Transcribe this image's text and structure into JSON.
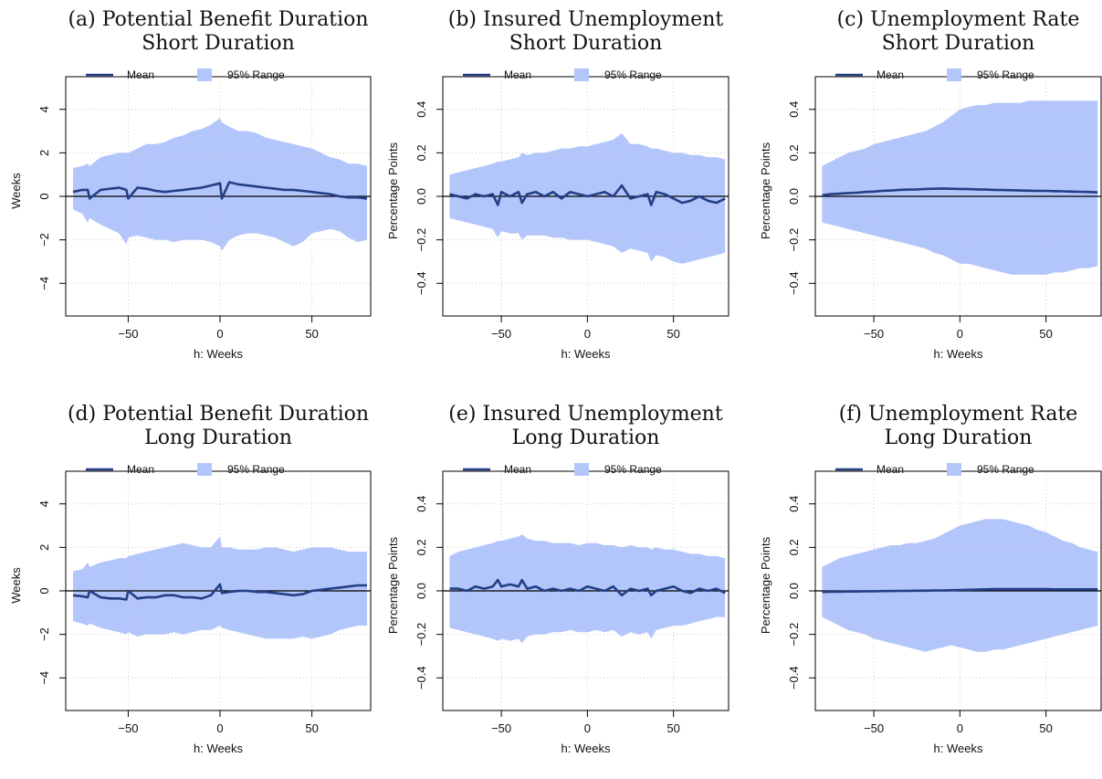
{
  "colors": {
    "band": "#b3c6fb",
    "mean": "#243f86",
    "zero_line": "#000000",
    "grid": "#cccccc"
  },
  "legend": {
    "mean_label": "Mean",
    "range_label": "95% Range"
  },
  "chart_data": [
    {
      "type": "line",
      "title": "(a) Potential Benefit Duration",
      "subtitle": "Short Duration",
      "xlabel": "h: Weeks",
      "ylabel": "Weeks",
      "xlim": [
        -84,
        82
      ],
      "ylim": [
        -5.5,
        5.5
      ],
      "xticks": [
        -50,
        0,
        50
      ],
      "yticks": [
        -4,
        -2,
        0,
        2,
        4
      ],
      "grid": true,
      "legend_position": "top",
      "x": [
        -80,
        -75,
        -72,
        -71,
        -65,
        -60,
        -55,
        -51,
        -50,
        -45,
        -40,
        -35,
        -30,
        -25,
        -20,
        -15,
        -10,
        -5,
        0,
        1,
        5,
        10,
        15,
        20,
        25,
        30,
        35,
        40,
        45,
        50,
        55,
        60,
        65,
        70,
        75,
        80
      ],
      "series": [
        {
          "name": "Mean",
          "values": [
            0.2,
            0.3,
            0.3,
            -0.1,
            0.3,
            0.35,
            0.4,
            0.3,
            -0.1,
            0.4,
            0.35,
            0.25,
            0.2,
            0.25,
            0.3,
            0.35,
            0.4,
            0.5,
            0.6,
            -0.1,
            0.65,
            0.55,
            0.5,
            0.45,
            0.4,
            0.35,
            0.3,
            0.3,
            0.25,
            0.2,
            0.15,
            0.1,
            0.0,
            -0.05,
            -0.05,
            -0.1
          ]
        },
        {
          "name": "95% Range",
          "lower": [
            -0.6,
            -0.8,
            -1.2,
            -1.0,
            -1.3,
            -1.5,
            -1.7,
            -2.2,
            -1.9,
            -1.8,
            -1.9,
            -2.0,
            -2.0,
            -2.1,
            -2.0,
            -2.0,
            -2.0,
            -2.1,
            -2.3,
            -2.5,
            -2.0,
            -1.8,
            -1.7,
            -1.7,
            -1.8,
            -1.9,
            -2.1,
            -2.3,
            -2.1,
            -1.7,
            -1.6,
            -1.5,
            -1.6,
            -1.9,
            -2.1,
            -2.0
          ],
          "upper": [
            1.3,
            1.4,
            1.5,
            1.4,
            1.8,
            1.9,
            2.0,
            2.0,
            2.0,
            2.2,
            2.4,
            2.4,
            2.5,
            2.7,
            2.8,
            3.0,
            3.1,
            3.3,
            3.6,
            3.4,
            3.2,
            3.0,
            3.0,
            2.9,
            2.7,
            2.6,
            2.5,
            2.4,
            2.3,
            2.2,
            2.0,
            1.8,
            1.7,
            1.5,
            1.5,
            1.4
          ]
        }
      ]
    },
    {
      "type": "line",
      "title": "(b) Insured Unemployment",
      "subtitle": "Short Duration",
      "xlabel": "h: Weeks",
      "ylabel": "Percentage Points",
      "xlim": [
        -84,
        82
      ],
      "ylim": [
        -0.55,
        0.55
      ],
      "xticks": [
        -50,
        0,
        50
      ],
      "yticks": [
        -0.4,
        -0.2,
        0.0,
        0.2,
        0.4
      ],
      "grid": true,
      "legend_position": "top",
      "x": [
        -80,
        -75,
        -70,
        -65,
        -60,
        -55,
        -52,
        -50,
        -45,
        -40,
        -38,
        -35,
        -30,
        -25,
        -20,
        -15,
        -10,
        -5,
        0,
        5,
        10,
        15,
        20,
        25,
        30,
        35,
        37,
        40,
        45,
        50,
        55,
        60,
        65,
        70,
        75,
        80
      ],
      "series": [
        {
          "name": "Mean",
          "values": [
            0.01,
            0.0,
            -0.01,
            0.01,
            0.0,
            0.01,
            -0.04,
            0.02,
            0.0,
            0.02,
            -0.03,
            0.01,
            0.02,
            0.0,
            0.02,
            -0.01,
            0.02,
            0.01,
            0.0,
            0.01,
            0.02,
            0.0,
            0.05,
            -0.01,
            0.0,
            0.01,
            -0.04,
            0.02,
            0.01,
            -0.01,
            -0.03,
            -0.02,
            0.0,
            -0.02,
            -0.03,
            -0.01
          ]
        },
        {
          "name": "95% Range",
          "lower": [
            -0.1,
            -0.11,
            -0.12,
            -0.13,
            -0.14,
            -0.15,
            -0.19,
            -0.16,
            -0.17,
            -0.17,
            -0.2,
            -0.18,
            -0.18,
            -0.18,
            -0.19,
            -0.19,
            -0.2,
            -0.2,
            -0.2,
            -0.21,
            -0.22,
            -0.23,
            -0.26,
            -0.24,
            -0.25,
            -0.26,
            -0.3,
            -0.27,
            -0.28,
            -0.3,
            -0.31,
            -0.3,
            -0.29,
            -0.28,
            -0.27,
            -0.26
          ],
          "upper": [
            0.1,
            0.11,
            0.12,
            0.13,
            0.14,
            0.15,
            0.16,
            0.16,
            0.17,
            0.18,
            0.2,
            0.19,
            0.2,
            0.2,
            0.21,
            0.22,
            0.22,
            0.23,
            0.23,
            0.24,
            0.25,
            0.26,
            0.29,
            0.24,
            0.24,
            0.23,
            0.22,
            0.22,
            0.21,
            0.2,
            0.2,
            0.19,
            0.19,
            0.18,
            0.18,
            0.17
          ]
        }
      ]
    },
    {
      "type": "line",
      "title": "(c) Unemployment Rate",
      "subtitle": "Short Duration",
      "xlabel": "h: Weeks",
      "ylabel": "Percentage Points",
      "xlim": [
        -84,
        82
      ],
      "ylim": [
        -0.55,
        0.55
      ],
      "xticks": [
        -50,
        0,
        50
      ],
      "yticks": [
        -0.4,
        -0.2,
        0.0,
        0.2,
        0.4
      ],
      "grid": true,
      "legend_position": "top",
      "x": [
        -80,
        -75,
        -70,
        -65,
        -60,
        -55,
        -50,
        -45,
        -40,
        -35,
        -30,
        -25,
        -20,
        -15,
        -10,
        -5,
        0,
        5,
        10,
        15,
        20,
        25,
        30,
        35,
        40,
        45,
        50,
        55,
        60,
        65,
        70,
        75,
        80
      ],
      "series": [
        {
          "name": "Mean",
          "values": [
            0.005,
            0.01,
            0.012,
            0.015,
            0.017,
            0.02,
            0.022,
            0.025,
            0.027,
            0.03,
            0.031,
            0.032,
            0.034,
            0.035,
            0.036,
            0.035,
            0.034,
            0.033,
            0.032,
            0.031,
            0.03,
            0.029,
            0.028,
            0.027,
            0.026,
            0.025,
            0.025,
            0.024,
            0.023,
            0.022,
            0.021,
            0.02,
            0.018
          ]
        },
        {
          "name": "95% Range",
          "lower": [
            -0.12,
            -0.13,
            -0.14,
            -0.15,
            -0.16,
            -0.17,
            -0.18,
            -0.19,
            -0.2,
            -0.21,
            -0.22,
            -0.23,
            -0.24,
            -0.26,
            -0.27,
            -0.29,
            -0.31,
            -0.31,
            -0.32,
            -0.33,
            -0.34,
            -0.35,
            -0.36,
            -0.36,
            -0.36,
            -0.36,
            -0.36,
            -0.35,
            -0.35,
            -0.34,
            -0.33,
            -0.33,
            -0.32
          ],
          "upper": [
            0.14,
            0.16,
            0.18,
            0.2,
            0.21,
            0.22,
            0.24,
            0.25,
            0.26,
            0.27,
            0.28,
            0.29,
            0.3,
            0.32,
            0.34,
            0.37,
            0.4,
            0.41,
            0.42,
            0.42,
            0.43,
            0.43,
            0.43,
            0.43,
            0.44,
            0.44,
            0.44,
            0.44,
            0.44,
            0.44,
            0.44,
            0.44,
            0.44
          ]
        }
      ]
    },
    {
      "type": "line",
      "title": "(d) Potential Benefit Duration",
      "subtitle": "Long Duration",
      "xlabel": "h: Weeks",
      "ylabel": "Weeks",
      "xlim": [
        -84,
        82
      ],
      "ylim": [
        -5.5,
        5.5
      ],
      "xticks": [
        -50,
        0,
        50
      ],
      "yticks": [
        -4,
        -2,
        0,
        2,
        4
      ],
      "grid": true,
      "legend_position": "top",
      "x": [
        -80,
        -75,
        -72,
        -71,
        -65,
        -60,
        -55,
        -51,
        -50,
        -45,
        -40,
        -35,
        -30,
        -25,
        -20,
        -15,
        -10,
        -5,
        0,
        1,
        5,
        10,
        15,
        20,
        25,
        30,
        35,
        40,
        45,
        50,
        55,
        60,
        65,
        70,
        75,
        80
      ],
      "series": [
        {
          "name": "Mean",
          "values": [
            -0.2,
            -0.25,
            -0.3,
            0.0,
            -0.3,
            -0.35,
            -0.35,
            -0.4,
            0.0,
            -0.35,
            -0.3,
            -0.3,
            -0.2,
            -0.2,
            -0.3,
            -0.3,
            -0.35,
            -0.2,
            0.3,
            -0.1,
            -0.05,
            0.0,
            0.0,
            -0.05,
            -0.05,
            -0.1,
            -0.15,
            -0.2,
            -0.15,
            0.0,
            0.05,
            0.1,
            0.15,
            0.2,
            0.25,
            0.25
          ]
        },
        {
          "name": "95% Range",
          "lower": [
            -1.4,
            -1.5,
            -1.6,
            -1.5,
            -1.7,
            -1.8,
            -1.9,
            -2.0,
            -1.9,
            -2.1,
            -2.0,
            -2.0,
            -2.0,
            -1.9,
            -2.0,
            -1.9,
            -1.8,
            -1.8,
            -1.6,
            -1.7,
            -1.8,
            -1.9,
            -2.0,
            -2.1,
            -2.2,
            -2.2,
            -2.2,
            -2.2,
            -2.1,
            -2.2,
            -2.1,
            -2.0,
            -1.8,
            -1.7,
            -1.6,
            -1.6
          ],
          "upper": [
            0.9,
            1.0,
            1.3,
            1.1,
            1.3,
            1.4,
            1.5,
            1.5,
            1.6,
            1.7,
            1.8,
            1.9,
            2.0,
            2.1,
            2.2,
            2.1,
            2.0,
            2.0,
            2.5,
            2.0,
            2.0,
            1.9,
            1.9,
            1.9,
            2.0,
            2.0,
            1.9,
            1.8,
            1.9,
            2.0,
            2.0,
            2.0,
            1.9,
            1.8,
            1.8,
            1.8
          ]
        }
      ]
    },
    {
      "type": "line",
      "title": "(e) Insured Unemployment",
      "subtitle": "Long Duration",
      "xlabel": "h: Weeks",
      "ylabel": "Percentage Points",
      "xlim": [
        -84,
        82
      ],
      "ylim": [
        -0.55,
        0.55
      ],
      "xticks": [
        -50,
        0,
        50
      ],
      "yticks": [
        -0.4,
        -0.2,
        0.0,
        0.2,
        0.4
      ],
      "grid": true,
      "legend_position": "top",
      "x": [
        -80,
        -75,
        -70,
        -65,
        -60,
        -55,
        -52,
        -50,
        -45,
        -40,
        -38,
        -35,
        -30,
        -25,
        -20,
        -15,
        -10,
        -5,
        0,
        5,
        10,
        15,
        20,
        25,
        30,
        35,
        37,
        40,
        45,
        50,
        55,
        60,
        65,
        70,
        75,
        80
      ],
      "series": [
        {
          "name": "Mean",
          "values": [
            0.01,
            0.01,
            0.0,
            0.02,
            0.01,
            0.02,
            0.05,
            0.02,
            0.03,
            0.02,
            0.05,
            0.01,
            0.02,
            0.0,
            0.01,
            0.0,
            0.01,
            0.0,
            0.02,
            0.01,
            0.0,
            0.02,
            -0.02,
            0.01,
            0.0,
            0.01,
            -0.02,
            0.0,
            0.01,
            0.02,
            0.0,
            -0.01,
            0.01,
            0.0,
            0.01,
            -0.01
          ]
        },
        {
          "name": "95% Range",
          "lower": [
            -0.17,
            -0.18,
            -0.19,
            -0.2,
            -0.21,
            -0.22,
            -0.23,
            -0.22,
            -0.23,
            -0.22,
            -0.24,
            -0.21,
            -0.2,
            -0.2,
            -0.19,
            -0.19,
            -0.18,
            -0.19,
            -0.19,
            -0.18,
            -0.19,
            -0.18,
            -0.21,
            -0.19,
            -0.2,
            -0.19,
            -0.22,
            -0.18,
            -0.17,
            -0.16,
            -0.16,
            -0.15,
            -0.14,
            -0.13,
            -0.12,
            -0.12
          ],
          "upper": [
            0.16,
            0.18,
            0.19,
            0.2,
            0.21,
            0.22,
            0.23,
            0.23,
            0.24,
            0.25,
            0.26,
            0.24,
            0.23,
            0.23,
            0.22,
            0.22,
            0.22,
            0.21,
            0.22,
            0.22,
            0.21,
            0.21,
            0.2,
            0.21,
            0.2,
            0.2,
            0.19,
            0.2,
            0.19,
            0.19,
            0.18,
            0.17,
            0.17,
            0.16,
            0.16,
            0.15
          ]
        }
      ]
    },
    {
      "type": "line",
      "title": "(f) Unemployment Rate",
      "subtitle": "Long Duration",
      "xlabel": "h: Weeks",
      "ylabel": "Percentage Points",
      "xlim": [
        -84,
        82
      ],
      "ylim": [
        -0.55,
        0.55
      ],
      "xticks": [
        -50,
        0,
        50
      ],
      "yticks": [
        -0.4,
        -0.2,
        0.0,
        0.2,
        0.4
      ],
      "grid": true,
      "legend_position": "top",
      "x": [
        -80,
        -75,
        -70,
        -65,
        -60,
        -55,
        -50,
        -45,
        -40,
        -35,
        -30,
        -25,
        -20,
        -15,
        -10,
        -5,
        0,
        5,
        10,
        15,
        20,
        25,
        30,
        35,
        40,
        45,
        50,
        55,
        60,
        65,
        70,
        75,
        80
      ],
      "series": [
        {
          "name": "Mean",
          "values": [
            -0.005,
            -0.004,
            -0.004,
            -0.003,
            -0.003,
            -0.002,
            -0.002,
            -0.001,
            -0.001,
            0.0,
            0.0,
            0.001,
            0.001,
            0.002,
            0.002,
            0.003,
            0.004,
            0.005,
            0.006,
            0.007,
            0.008,
            0.008,
            0.008,
            0.008,
            0.008,
            0.008,
            0.008,
            0.007,
            0.007,
            0.007,
            0.007,
            0.007,
            0.007
          ]
        },
        {
          "name": "95% Range",
          "lower": [
            -0.12,
            -0.14,
            -0.16,
            -0.18,
            -0.19,
            -0.2,
            -0.22,
            -0.23,
            -0.24,
            -0.25,
            -0.26,
            -0.27,
            -0.28,
            -0.27,
            -0.26,
            -0.25,
            -0.26,
            -0.27,
            -0.28,
            -0.28,
            -0.27,
            -0.27,
            -0.26,
            -0.25,
            -0.24,
            -0.23,
            -0.22,
            -0.21,
            -0.2,
            -0.19,
            -0.18,
            -0.17,
            -0.16
          ],
          "upper": [
            0.11,
            0.13,
            0.15,
            0.16,
            0.17,
            0.18,
            0.19,
            0.2,
            0.21,
            0.21,
            0.22,
            0.22,
            0.23,
            0.24,
            0.26,
            0.28,
            0.3,
            0.31,
            0.32,
            0.33,
            0.33,
            0.33,
            0.32,
            0.31,
            0.3,
            0.28,
            0.27,
            0.25,
            0.23,
            0.22,
            0.2,
            0.19,
            0.18
          ]
        }
      ]
    }
  ]
}
